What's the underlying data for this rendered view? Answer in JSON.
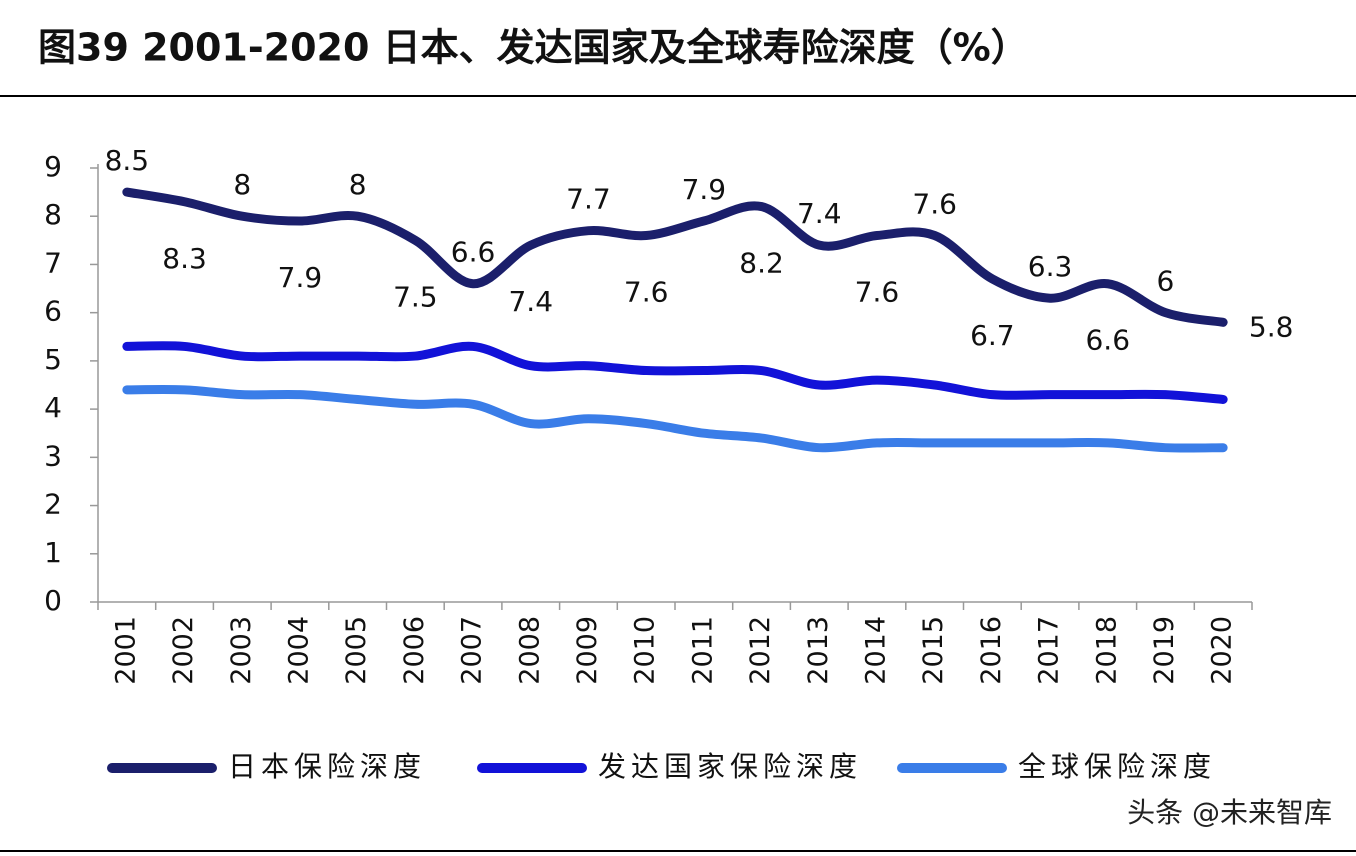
{
  "chart_data": {
    "type": "line",
    "title": "图39 2001-2020 日本、发达国家及全球寿险深度（%）",
    "categories": [
      "2001",
      "2002",
      "2003",
      "2004",
      "2005",
      "2006",
      "2007",
      "2008",
      "2009",
      "2010",
      "2011",
      "2012",
      "2013",
      "2014",
      "2015",
      "2016",
      "2017",
      "2018",
      "2019",
      "2020"
    ],
    "series": [
      {
        "name": "日本保险深度",
        "color": "#1b1f6b",
        "values": [
          8.5,
          8.3,
          8,
          7.9,
          8,
          7.5,
          6.6,
          7.4,
          7.7,
          7.6,
          7.9,
          8.2,
          7.4,
          7.6,
          7.6,
          6.7,
          6.3,
          6.6,
          6,
          5.8
        ],
        "data_labels": true
      },
      {
        "name": "发达国家保险深度",
        "color": "#1212d8",
        "values": [
          5.3,
          5.3,
          5.1,
          5.1,
          5.1,
          5.1,
          5.3,
          4.9,
          4.9,
          4.8,
          4.8,
          4.8,
          4.5,
          4.6,
          4.5,
          4.3,
          4.3,
          4.3,
          4.3,
          4.2
        ]
      },
      {
        "name": "全球保险深度",
        "color": "#3a7de8",
        "values": [
          4.4,
          4.4,
          4.3,
          4.3,
          4.2,
          4.1,
          4.1,
          3.7,
          3.8,
          3.7,
          3.5,
          3.4,
          3.2,
          3.3,
          3.3,
          3.3,
          3.3,
          3.3,
          3.2,
          3.2
        ]
      }
    ],
    "ylim": [
      0,
      9
    ],
    "yticks": [
      0,
      1,
      2,
      3,
      4,
      5,
      6,
      7,
      8,
      9
    ],
    "watermark": "头条 @未来智库"
  }
}
